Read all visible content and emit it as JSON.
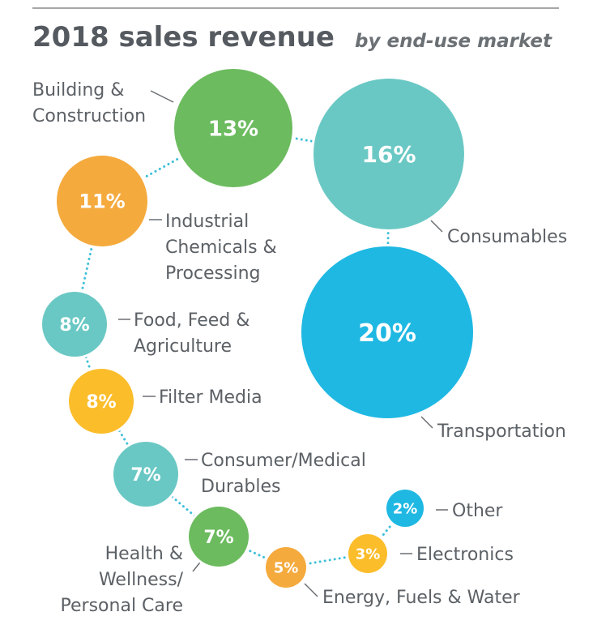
{
  "chart_data": {
    "type": "bubble",
    "title": "2018 sales revenue",
    "subtitle": "by end-use market",
    "unit": "%",
    "series": [
      {
        "category": "Building & Construction",
        "value": 13,
        "label": "13%",
        "color": "#6cbb5f"
      },
      {
        "category": "Consumables",
        "value": 16,
        "label": "16%",
        "color": "#6ac8c4"
      },
      {
        "category": "Transportation",
        "value": 20,
        "label": "20%",
        "color": "#1fb8e3"
      },
      {
        "category": "Industrial Chemicals & Processing",
        "value": 11,
        "label": "11%",
        "color": "#f5aa3d"
      },
      {
        "category": "Food, Feed & Agriculture",
        "value": 8,
        "label": "8%",
        "color": "#6ac8c4"
      },
      {
        "category": "Filter Media",
        "value": 8,
        "label": "8%",
        "color": "#fbbd2a"
      },
      {
        "category": "Consumer/Medical Durables",
        "value": 7,
        "label": "7%",
        "color": "#6ac8c4"
      },
      {
        "category": "Health & Wellness/ Personal Care",
        "value": 7,
        "label": "7%",
        "color": "#6cbb5f"
      },
      {
        "category": "Energy, Fuels & Water",
        "value": 5,
        "label": "5%",
        "color": "#f5aa3d"
      },
      {
        "category": "Electronics",
        "value": 3,
        "label": "3%",
        "color": "#fbbd2a"
      },
      {
        "category": "Other",
        "value": 2,
        "label": "2%",
        "color": "#1fb8e3"
      }
    ]
  },
  "category_label_lines": [
    [
      "Building &",
      "Construction"
    ],
    [
      "Consumables"
    ],
    [
      "Transportation"
    ],
    [
      "Industrial",
      "Chemicals &",
      "Processing"
    ],
    [
      "Food, Feed &",
      "Agriculture"
    ],
    [
      "Filter Media"
    ],
    [
      "Consumer/Medical",
      "Durables"
    ],
    [
      "Health &",
      "Wellness/",
      "Personal Care"
    ],
    [
      "Energy, Fuels & Water"
    ],
    [
      "Electronics"
    ],
    [
      "Other"
    ]
  ],
  "colors": {
    "text": "#5c6166",
    "title": "#555a60",
    "dots": "#3ebfd8",
    "rule": "#888888"
  }
}
